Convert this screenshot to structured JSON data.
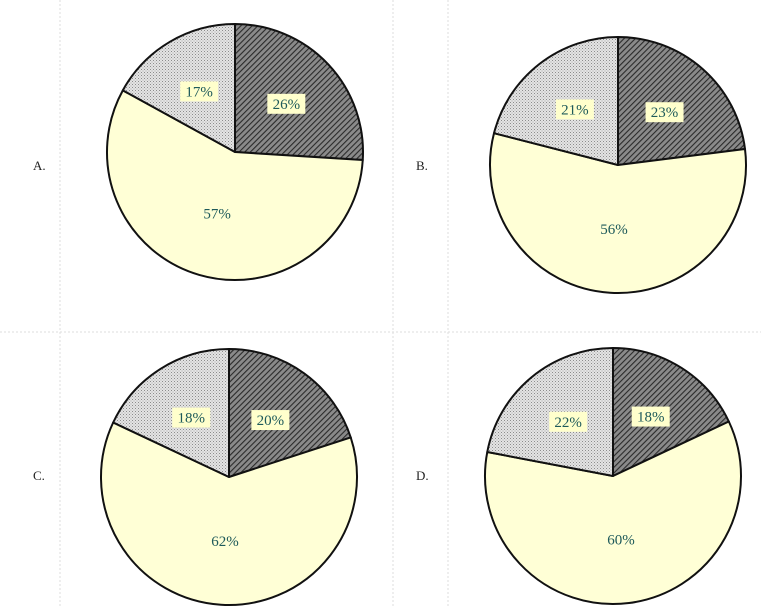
{
  "colors": {
    "dark_slice": "#666666",
    "light_slice": "#d4d4d4",
    "yellow_slice": "#ffffd6",
    "label_bg": "#ffffcc",
    "label_text": "#1e5a5a",
    "outline": "#111111",
    "grid_line": "#dddddd"
  },
  "chart_data": [
    {
      "type": "pie",
      "option": "A.",
      "slices": [
        {
          "label": "26%",
          "value": 26,
          "fill": "dark"
        },
        {
          "label": "57%",
          "value": 57,
          "fill": "yellow"
        },
        {
          "label": "17%",
          "value": 17,
          "fill": "light"
        }
      ]
    },
    {
      "type": "pie",
      "option": "B.",
      "slices": [
        {
          "label": "23%",
          "value": 23,
          "fill": "dark"
        },
        {
          "label": "56%",
          "value": 56,
          "fill": "yellow"
        },
        {
          "label": "21%",
          "value": 21,
          "fill": "light"
        }
      ]
    },
    {
      "type": "pie",
      "option": "C.",
      "slices": [
        {
          "label": "20%",
          "value": 20,
          "fill": "dark"
        },
        {
          "label": "62%",
          "value": 62,
          "fill": "yellow"
        },
        {
          "label": "18%",
          "value": 18,
          "fill": "light"
        }
      ]
    },
    {
      "type": "pie",
      "option": "D.",
      "slices": [
        {
          "label": "18%",
          "value": 18,
          "fill": "dark"
        },
        {
          "label": "60%",
          "value": 60,
          "fill": "yellow"
        },
        {
          "label": "22%",
          "value": 22,
          "fill": "light"
        }
      ]
    }
  ]
}
